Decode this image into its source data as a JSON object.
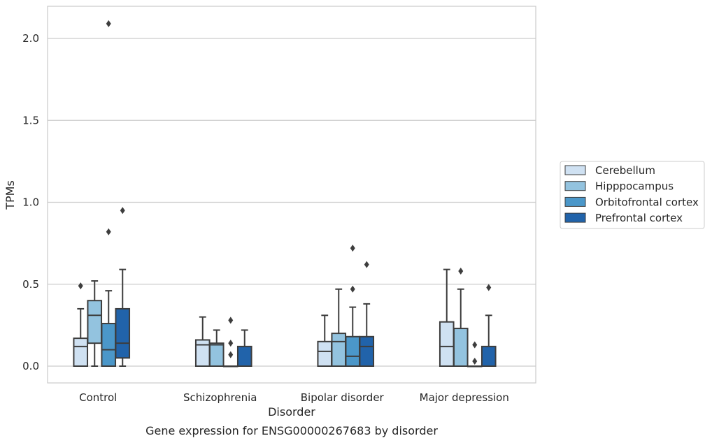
{
  "chart_data": {
    "type": "box",
    "caption": "Gene expression for ENSG00000267683 by disorder",
    "xlabel": "Disorder",
    "ylabel": "TPMs",
    "ylim": [
      -0.1,
      2.2
    ],
    "yticks": [
      0.0,
      0.5,
      1.0,
      1.5,
      2.0
    ],
    "ytick_labels": [
      "0.0",
      "0.5",
      "1.0",
      "1.5",
      "2.0"
    ],
    "grid": "horizontal",
    "legend_position": "right",
    "categories": [
      "Control",
      "Schizophrenia",
      "Bipolar disorder",
      "Major depression"
    ],
    "series": [
      {
        "name": "Cerebellum",
        "color": "#cfe1f2",
        "boxes": [
          {
            "whisker_low": 0.0,
            "q1": 0.0,
            "median": 0.12,
            "q3": 0.17,
            "whisker_high": 0.35,
            "outliers": [
              0.49
            ]
          },
          {
            "whisker_low": 0.0,
            "q1": 0.0,
            "median": 0.13,
            "q3": 0.16,
            "whisker_high": 0.3,
            "outliers": []
          },
          {
            "whisker_low": 0.0,
            "q1": 0.0,
            "median": 0.09,
            "q3": 0.15,
            "whisker_high": 0.31,
            "outliers": []
          },
          {
            "whisker_low": 0.0,
            "q1": 0.0,
            "median": 0.12,
            "q3": 0.27,
            "whisker_high": 0.59,
            "outliers": []
          }
        ]
      },
      {
        "name": "Hipppocampus",
        "color": "#93c3df",
        "boxes": [
          {
            "whisker_low": 0.0,
            "q1": 0.14,
            "median": 0.31,
            "q3": 0.4,
            "whisker_high": 0.52,
            "outliers": []
          },
          {
            "whisker_low": 0.0,
            "q1": 0.0,
            "median": 0.13,
            "q3": 0.14,
            "whisker_high": 0.22,
            "outliers": []
          },
          {
            "whisker_low": 0.0,
            "q1": 0.0,
            "median": 0.15,
            "q3": 0.2,
            "whisker_high": 0.47,
            "outliers": []
          },
          {
            "whisker_low": 0.0,
            "q1": 0.0,
            "median": 0.0,
            "q3": 0.23,
            "whisker_high": 0.47,
            "outliers": [
              0.58
            ]
          }
        ]
      },
      {
        "name": "Orbitofrontal cortex",
        "color": "#4b97c9",
        "boxes": [
          {
            "whisker_low": 0.0,
            "q1": 0.0,
            "median": 0.1,
            "q3": 0.26,
            "whisker_high": 0.46,
            "outliers": [
              0.82,
              2.09
            ]
          },
          {
            "whisker_low": 0.0,
            "q1": 0.0,
            "median": 0.0,
            "q3": 0.0,
            "whisker_high": 0.0,
            "outliers": [
              0.07,
              0.14,
              0.28
            ]
          },
          {
            "whisker_low": 0.0,
            "q1": 0.0,
            "median": 0.06,
            "q3": 0.18,
            "whisker_high": 0.36,
            "outliers": [
              0.47,
              0.72
            ]
          },
          {
            "whisker_low": 0.0,
            "q1": 0.0,
            "median": 0.0,
            "q3": 0.0,
            "whisker_high": 0.0,
            "outliers": [
              0.03,
              0.13
            ]
          }
        ]
      },
      {
        "name": "Prefrontal cortex",
        "color": "#2163aa",
        "boxes": [
          {
            "whisker_low": 0.0,
            "q1": 0.05,
            "median": 0.14,
            "q3": 0.35,
            "whisker_high": 0.59,
            "outliers": [
              0.95
            ]
          },
          {
            "whisker_low": 0.0,
            "q1": 0.0,
            "median": 0.0,
            "q3": 0.12,
            "whisker_high": 0.22,
            "outliers": []
          },
          {
            "whisker_low": 0.0,
            "q1": 0.0,
            "median": 0.12,
            "q3": 0.18,
            "whisker_high": 0.38,
            "outliers": [
              0.62
            ]
          },
          {
            "whisker_low": 0.0,
            "q1": 0.0,
            "median": 0.0,
            "q3": 0.12,
            "whisker_high": 0.31,
            "outliers": [
              0.48
            ]
          }
        ]
      }
    ]
  }
}
